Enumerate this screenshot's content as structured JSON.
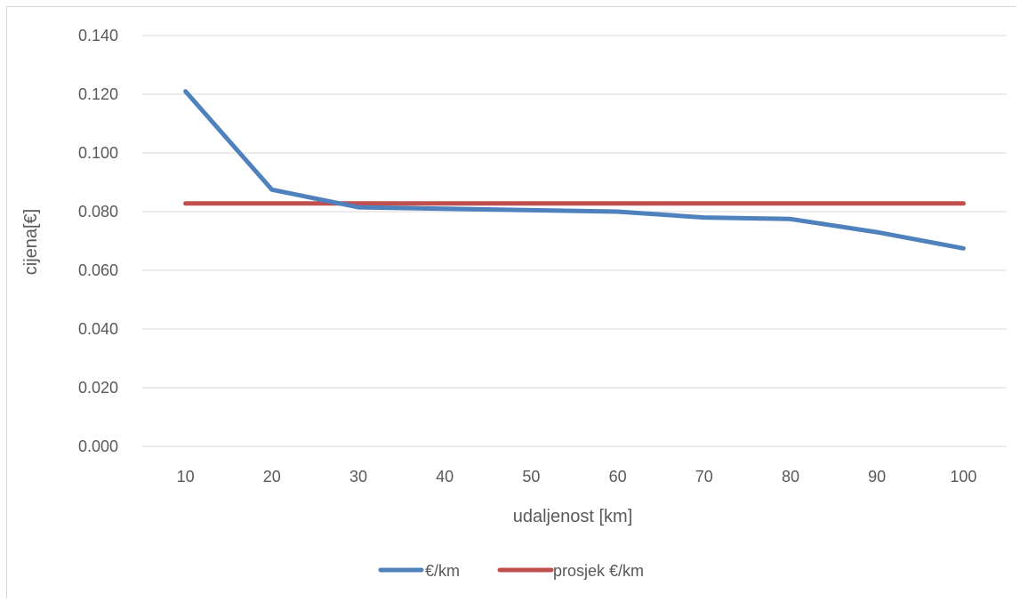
{
  "chart_data": {
    "type": "line",
    "title": "",
    "xlabel": "udaljenost [km]",
    "ylabel": "cijena[€]",
    "categories": [
      "10",
      "20",
      "30",
      "40",
      "50",
      "60",
      "70",
      "80",
      "90",
      "100"
    ],
    "series": [
      {
        "name": "€/km",
        "color": "#4f81bd",
        "values": [
          0.121,
          0.0875,
          0.0815,
          0.081,
          0.0805,
          0.08,
          0.078,
          0.0775,
          0.073,
          0.0675
        ]
      },
      {
        "name": "prosjek €/km",
        "color": "#c0504d",
        "values": [
          0.0828,
          0.0828,
          0.0828,
          0.0828,
          0.0828,
          0.0828,
          0.0828,
          0.0828,
          0.0828,
          0.0828
        ]
      }
    ],
    "ylim": [
      0,
      0.14
    ],
    "yticks": [
      "0.000",
      "0.020",
      "0.040",
      "0.060",
      "0.080",
      "0.100",
      "0.120",
      "0.140"
    ],
    "grid": true,
    "legend_position": "bottom"
  }
}
